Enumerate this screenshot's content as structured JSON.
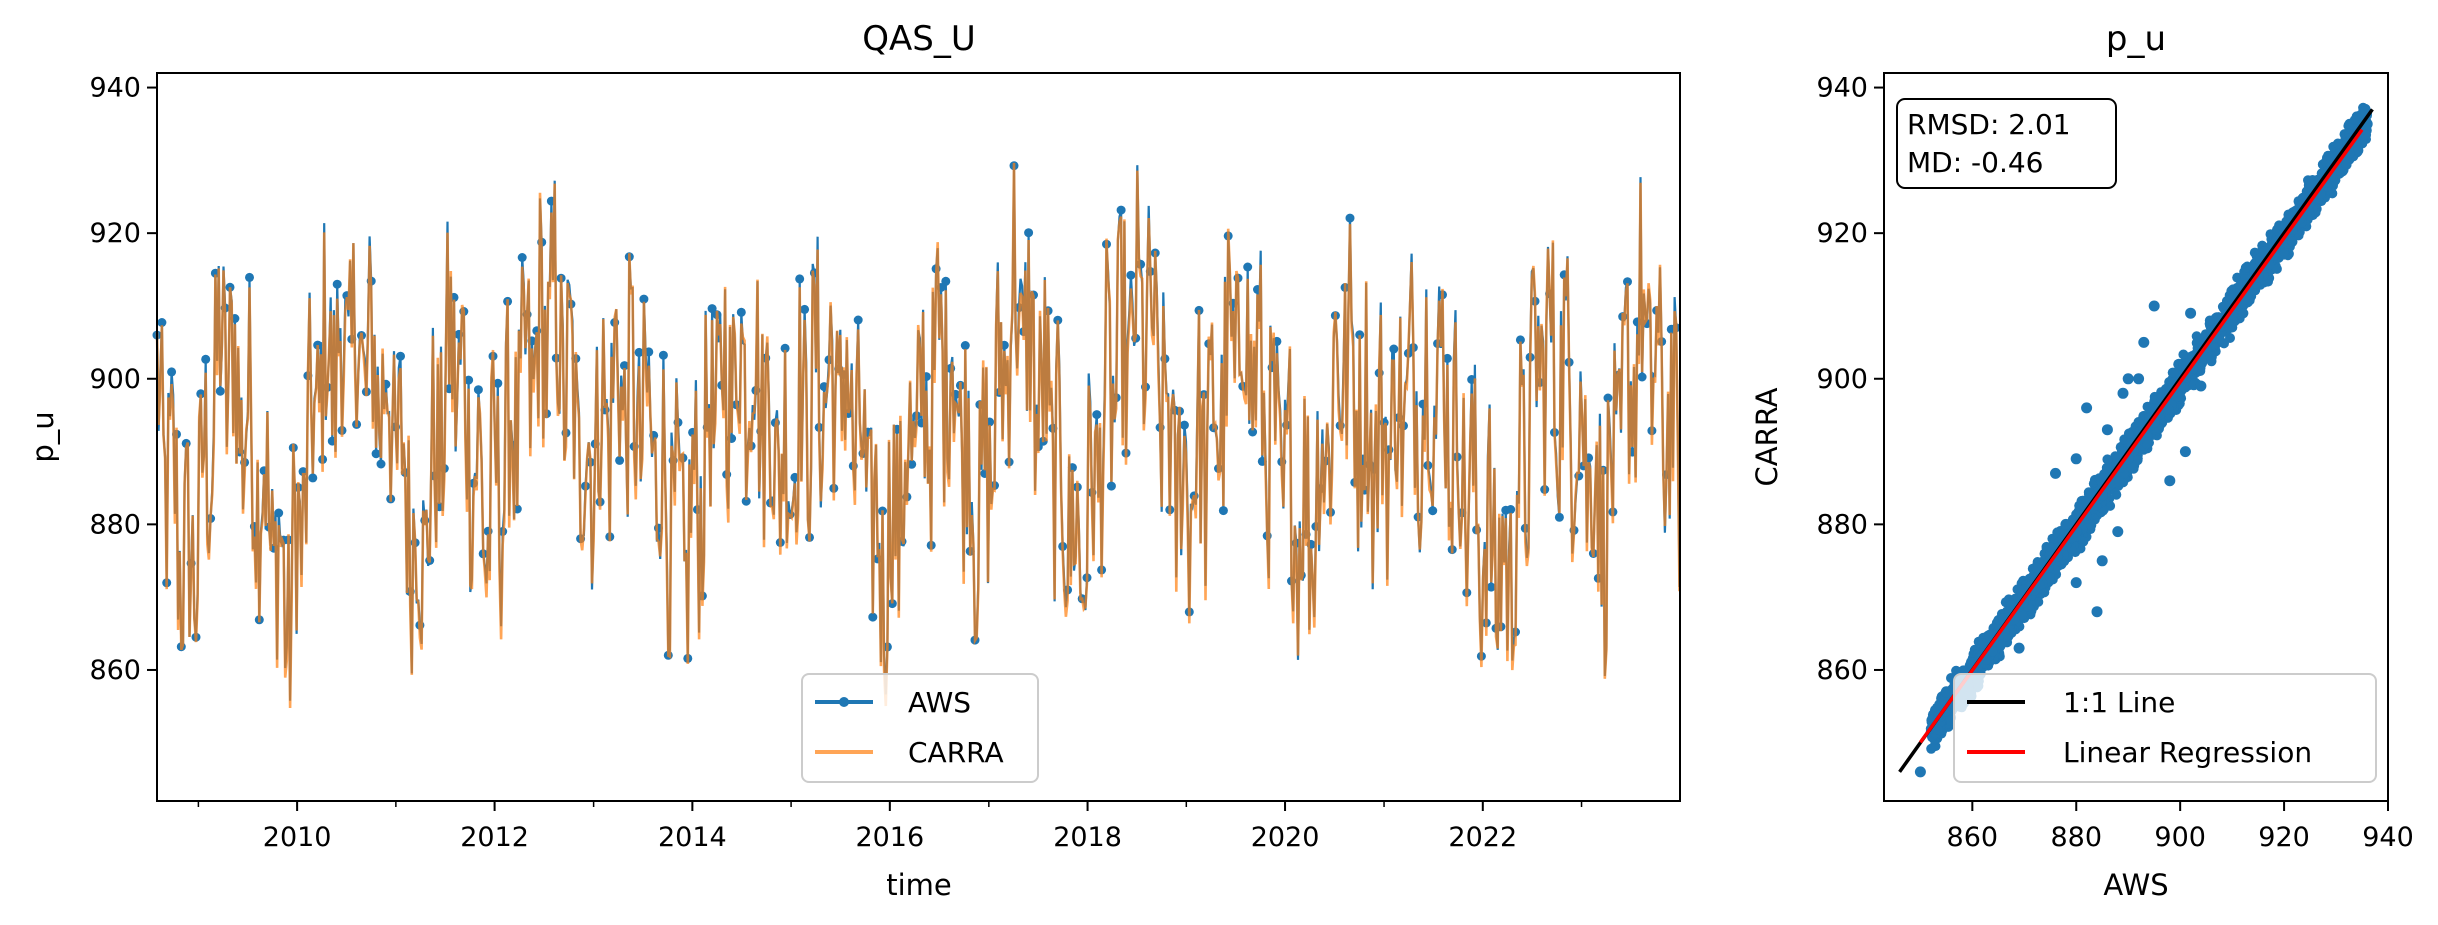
{
  "chart_data": [
    {
      "type": "line",
      "title": "QAS_U",
      "xlabel": "time",
      "ylabel": "p_u",
      "xlim": [
        "2008-08-01",
        "2023-12-31"
      ],
      "ylim": [
        842,
        942
      ],
      "x_ticks": [
        "2010",
        "2012",
        "2014",
        "2016",
        "2018",
        "2020",
        "2022"
      ],
      "y_ticks": [
        860,
        880,
        900,
        920,
        940
      ],
      "legend": {
        "position": "lower-center",
        "entries": [
          "AWS",
          "CARRA"
        ]
      },
      "grid": false,
      "series": [
        {
          "name": "AWS",
          "style": "line-with-circle-markers",
          "color": "#1f77b4",
          "x": [
            "2008-08",
            "2008-12",
            "2009-04",
            "2009-08",
            "2009-12",
            "2010-04",
            "2010-08",
            "2010-12",
            "2011-04",
            "2011-08",
            "2011-12",
            "2012-04",
            "2012-08",
            "2012-12",
            "2013-04",
            "2013-08",
            "2013-12",
            "2014-04",
            "2014-08",
            "2014-12",
            "2015-04",
            "2015-08",
            "2015-12",
            "2016-04",
            "2016-08",
            "2016-12",
            "2017-04",
            "2017-08",
            "2017-12",
            "2018-04",
            "2018-08",
            "2018-12",
            "2019-04",
            "2019-08",
            "2019-12",
            "2020-04",
            "2020-08",
            "2020-12",
            "2021-04",
            "2021-08",
            "2021-12",
            "2022-04",
            "2022-08",
            "2022-12",
            "2023-04",
            "2023-08",
            "2023-12"
          ],
          "y": [
            895,
            872,
            905,
            890,
            868,
            902,
            905,
            898,
            875,
            905,
            880,
            896,
            910,
            888,
            900,
            892,
            875,
            898,
            904,
            888,
            900,
            898,
            874,
            892,
            905,
            880,
            912,
            895,
            875,
            900,
            910,
            885,
            892,
            908,
            888,
            880,
            905,
            890,
            898,
            900,
            882,
            872,
            905,
            898,
            880,
            908,
            892
          ],
          "minimum": 855,
          "maximum": 937
        },
        {
          "name": "CARRA",
          "style": "line",
          "color": "#ff7f0e",
          "x": [
            "2008-08",
            "2008-12",
            "2009-04",
            "2009-08",
            "2009-12",
            "2010-04",
            "2010-08",
            "2010-12",
            "2011-04",
            "2011-08",
            "2011-12",
            "2012-04",
            "2012-08",
            "2012-12",
            "2013-04",
            "2013-08",
            "2013-12",
            "2014-04",
            "2014-08",
            "2014-12",
            "2015-04",
            "2015-08",
            "2015-12",
            "2016-04",
            "2016-08",
            "2016-12",
            "2017-04",
            "2017-08",
            "2017-12",
            "2018-04",
            "2018-08",
            "2018-12",
            "2019-04",
            "2019-08",
            "2019-12",
            "2020-04",
            "2020-08",
            "2020-12",
            "2021-04",
            "2021-08",
            "2021-12",
            "2022-04",
            "2022-08",
            "2022-12",
            "2023-04",
            "2023-08",
            "2023-12"
          ],
          "y": [
            894,
            871,
            904,
            889,
            867,
            901,
            904,
            897,
            874,
            904,
            879,
            895,
            909,
            887,
            899,
            891,
            874,
            897,
            903,
            887,
            899,
            897,
            873,
            891,
            904,
            879,
            911,
            894,
            874,
            899,
            909,
            884,
            891,
            907,
            887,
            879,
            904,
            889,
            897,
            899,
            881,
            871,
            904,
            897,
            879,
            907,
            891
          ],
          "minimum": 846,
          "maximum": 935
        }
      ]
    },
    {
      "type": "scatter",
      "title": "p_u",
      "xlabel": "AWS",
      "ylabel": "CARRA",
      "xlim": [
        843,
        940
      ],
      "ylim": [
        842,
        942
      ],
      "x_ticks": [
        860,
        880,
        900,
        920,
        940
      ],
      "y_ticks": [
        860,
        880,
        900,
        920,
        940
      ],
      "stats": {
        "rmsd": "RMSD: 2.01",
        "md": "MD: -0.46"
      },
      "legend": {
        "position": "lower-right",
        "entries": [
          "1:1 Line",
          "Linear Regression"
        ]
      },
      "grid": false,
      "point_color": "#1f77b4",
      "one_to_one": {
        "name": "1:1 Line",
        "color": "#000000",
        "x": [
          846,
          937
        ],
        "y": [
          846,
          937
        ]
      },
      "regression": {
        "name": "Linear Regression",
        "color": "#ff0000",
        "slope": 0.99,
        "intercept": 8.55,
        "x": [
          850,
          935
        ]
      },
      "points": {
        "x": [
          850,
          855,
          857,
          860,
          862,
          864,
          866,
          868,
          870,
          872,
          875,
          878,
          880,
          882,
          885,
          888,
          890,
          893,
          895,
          898,
          900,
          903,
          905,
          908,
          910,
          913,
          915,
          918,
          920,
          923,
          925,
          928,
          930,
          933,
          936,
          876,
          882,
          890,
          893,
          895,
          902,
          905,
          910,
          880,
          885,
          888,
          898,
          901,
          880,
          886,
          889,
          892,
          904,
          906,
          869,
          878,
          884
        ],
        "y": [
          846,
          857,
          856,
          861,
          862,
          864,
          867,
          867,
          871,
          871,
          875,
          879,
          879,
          883,
          884,
          889,
          889,
          893,
          894,
          898,
          899,
          903,
          904,
          908,
          909,
          913,
          914,
          917,
          920,
          922,
          925,
          927,
          930,
          933,
          935,
          887,
          896,
          900,
          905,
          910,
          909,
          905,
          908,
          872,
          875,
          879,
          886,
          890,
          889,
          893,
          898,
          900,
          899,
          903,
          863,
          880,
          868
        ]
      }
    }
  ]
}
